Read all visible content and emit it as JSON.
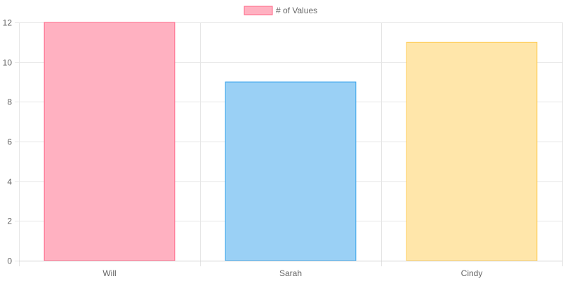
{
  "chart_data": {
    "type": "bar",
    "categories": [
      "Will",
      "Sarah",
      "Cindy"
    ],
    "series": [
      {
        "name": "# of Values",
        "values": [
          12,
          9,
          11
        ]
      }
    ],
    "ylim": [
      0,
      12
    ],
    "yticks": [
      0,
      2,
      4,
      6,
      8,
      10,
      12
    ],
    "grid": true,
    "legend_position": "top",
    "colors": {
      "fills": [
        "#ffb1c1",
        "#9ad0f5",
        "#ffe6aa"
      ],
      "strokes": [
        "#ff6384",
        "#36a2eb",
        "#ffcd56"
      ],
      "legend_fill": "#ffb1c1",
      "legend_stroke": "#ff6384",
      "grid": "#e5e5e5",
      "text": "#666666"
    }
  }
}
